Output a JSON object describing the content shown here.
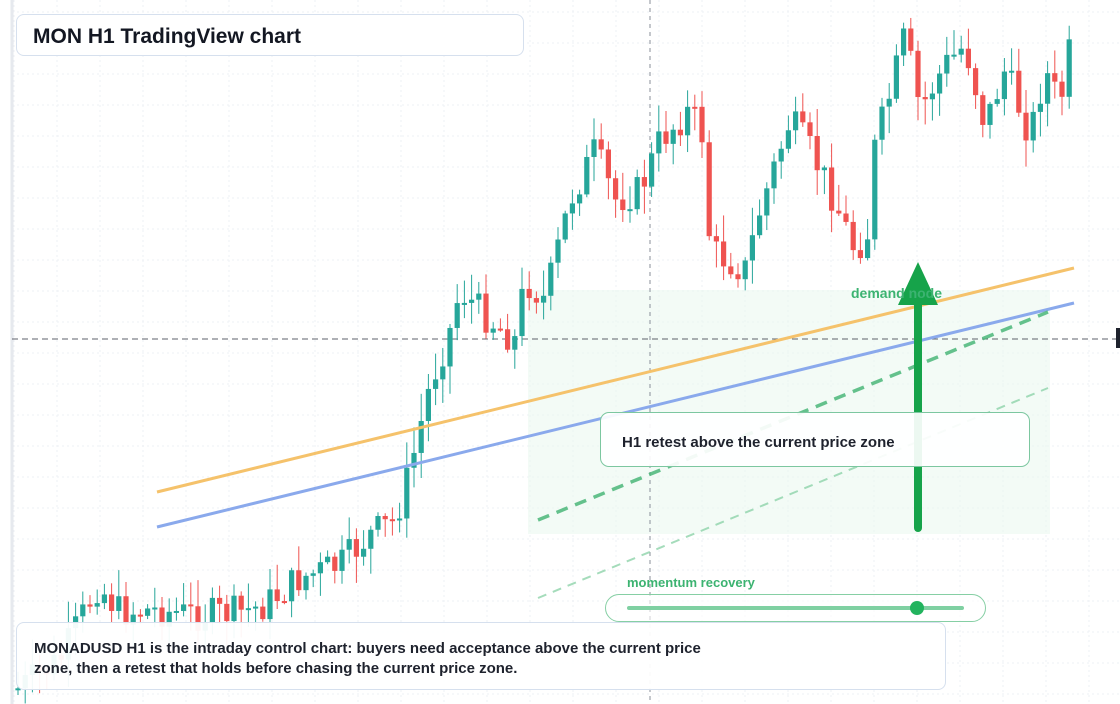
{
  "title": "MON H1 TradingView chart",
  "note": "H1 retest above the current price zone",
  "zone_label": "demand node",
  "slider": {
    "label": "momentum recovery",
    "value": 0.86
  },
  "caption": "MONADUSD H1 is the intraday control chart: buyers need acceptance above the current price zone, then a retest that holds before chasing the current price zone.",
  "colors": {
    "bull": "#26a69a",
    "bear": "#ef5350",
    "trend_orange": "#f5c26b",
    "trend_blue": "#8aa9ec",
    "projection": "#4cb87a",
    "arrow": "#16a34a"
  },
  "chart_data": {
    "type": "candlestick",
    "symbol": "MONADUSD",
    "timeframe": "H1",
    "grid": true,
    "current_price_line": true,
    "candle_count": 148,
    "trend": "strong rally, consolidation, then pullback and recovery to new highs"
  }
}
